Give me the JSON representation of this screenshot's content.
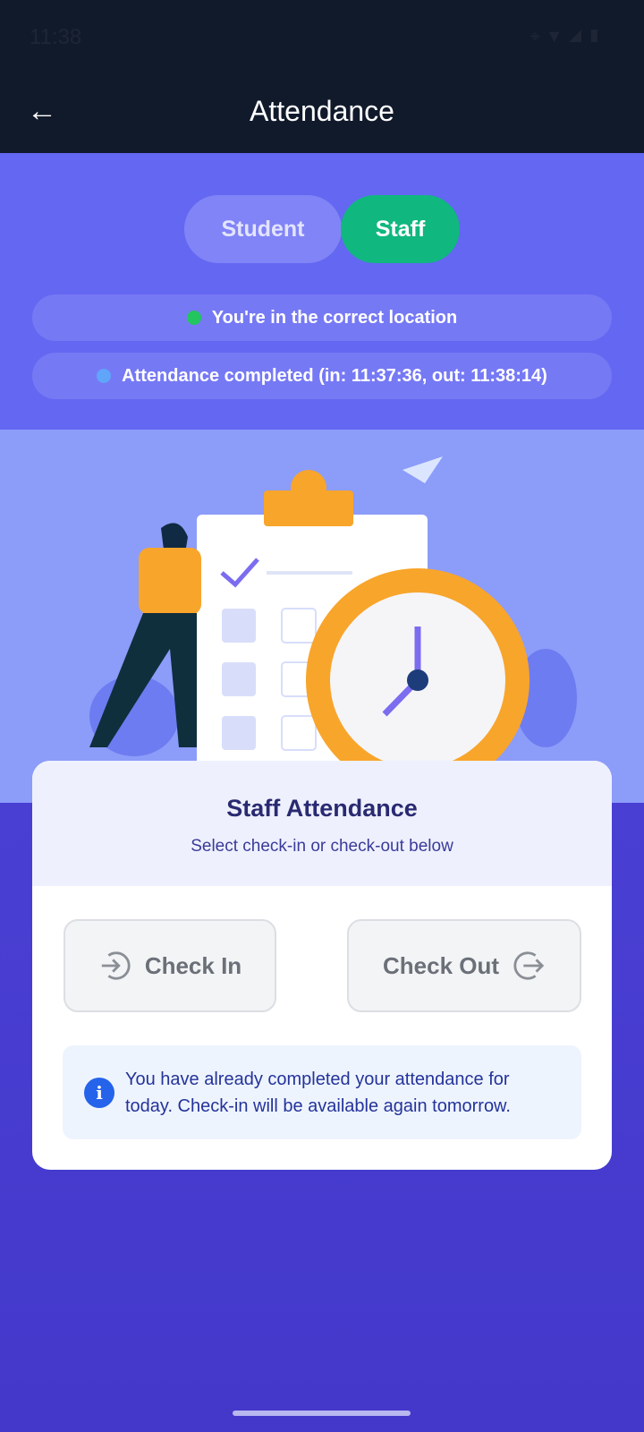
{
  "status_bar": {
    "time": "11:38",
    "icons": [
      "location-icon",
      "wifi-call-icon",
      "wifi-icon",
      "signal-icon",
      "battery-icon"
    ]
  },
  "header": {
    "title": "Attendance",
    "back_icon": "arrow-left-icon"
  },
  "toggle": {
    "options": [
      "Student",
      "Staff"
    ],
    "selected": "Staff"
  },
  "status_pills": [
    {
      "text": "You're in the correct location",
      "dot_color": "#22c55e"
    },
    {
      "text": "Attendance completed (in: 11:37:36, out: 11:38:14)",
      "dot_color": "#60a5fa"
    }
  ],
  "card": {
    "title": "Staff Attendance",
    "subtitle": "Select check-in or check-out below",
    "check_in_label": "Check In",
    "check_out_label": "Check Out",
    "info_text": "You have already completed your attendance for today. Check-in will be available again tomorrow."
  },
  "colors": {
    "header": "#111a2b",
    "primary": "#6467f1",
    "active_toggle": "#10b77f",
    "info_icon": "#2563eb"
  }
}
